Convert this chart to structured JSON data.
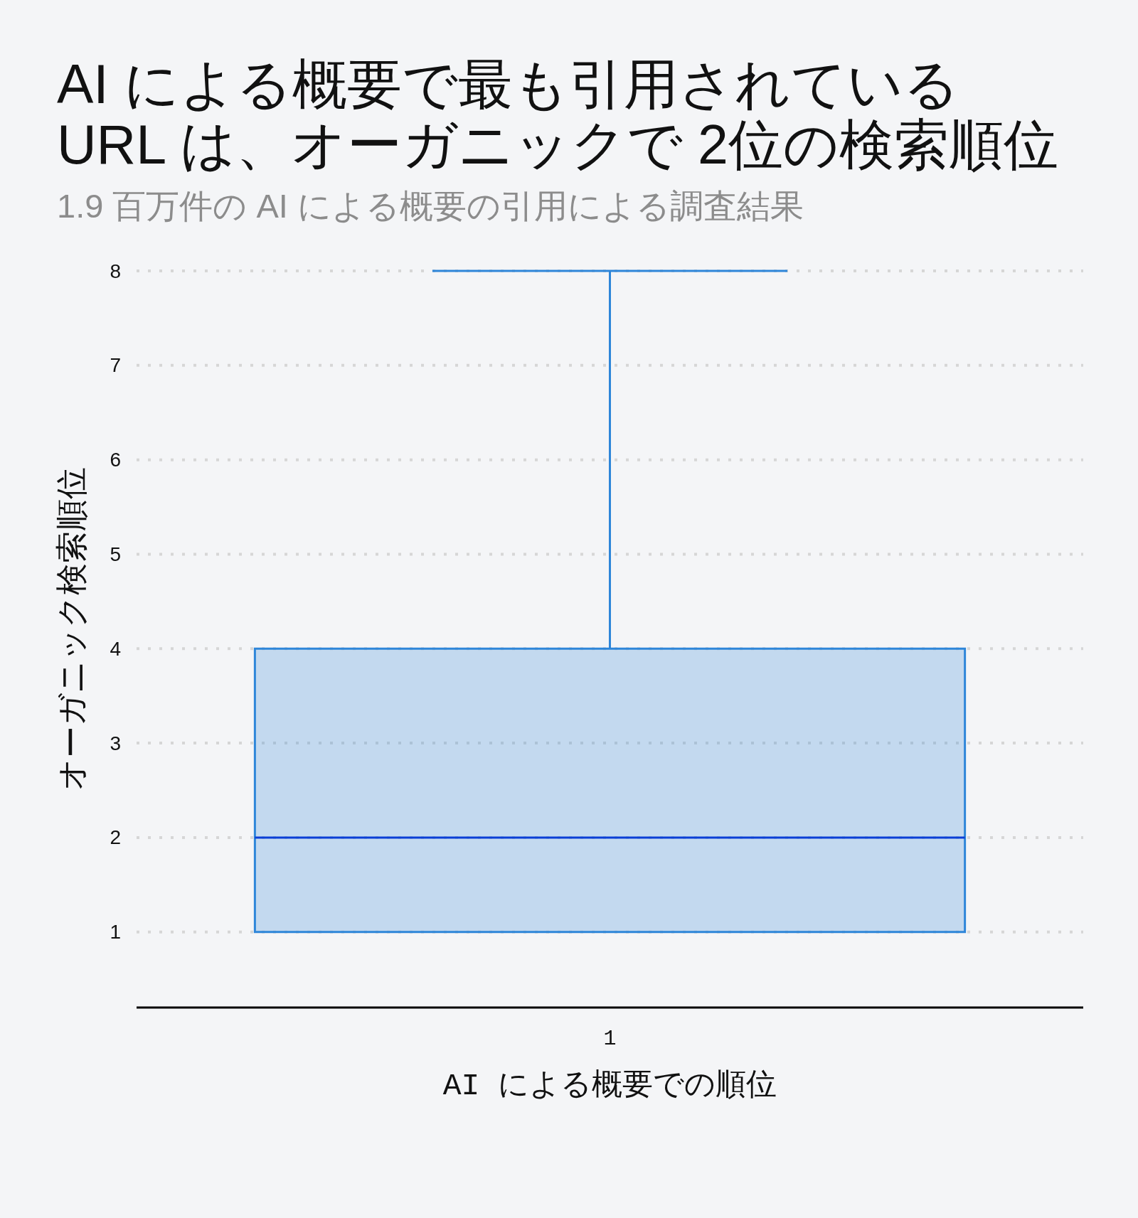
{
  "chart_data": {
    "type": "box",
    "title": [
      "AI による概要で最も引用されている",
      "URL は、オーガニックで 2位の検索順位"
    ],
    "subtitle": "1.9 百万件の AI による概要の引用による調査結果",
    "xlabel": "AI による概要での順位",
    "ylabel": "オーガニック検索順位",
    "categories": [
      "1"
    ],
    "series": [
      {
        "color": "#2e86d9",
        "boxes": [
          {
            "low": 1,
            "q1": 1,
            "median": 2,
            "q3": 4,
            "high": 8
          }
        ]
      }
    ],
    "ylim": [
      0.2,
      8
    ],
    "yticks": [
      1,
      2,
      3,
      4,
      5,
      6,
      7,
      8
    ],
    "grid": "y"
  }
}
